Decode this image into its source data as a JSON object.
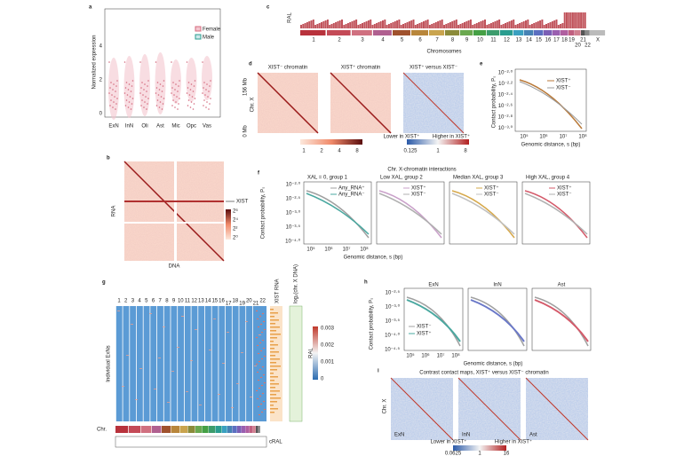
{
  "panels": {
    "a": {
      "letter": "a",
      "ylabel": "Normalized expression",
      "yticks": [
        "0",
        "2",
        "4"
      ],
      "categories": [
        "ExN",
        "InN",
        "Oli",
        "Ast",
        "Mic",
        "Opc",
        "Vas"
      ],
      "legend": [
        "Female",
        "Male"
      ]
    },
    "b": {
      "letter": "b",
      "ylabel": "RNA",
      "xlabel": "DNA",
      "annotation": "XIST",
      "colorbar": [
        "2⁶",
        "2⁴",
        "2²",
        "2⁰"
      ]
    },
    "c": {
      "letter": "c",
      "ylabel": "RAL",
      "xlabel": "Chromosomes",
      "chromosomes": [
        "1",
        "2",
        "3",
        "4",
        "5",
        "6",
        "7",
        "8",
        "9",
        "10",
        "11",
        "12",
        "13",
        "14",
        "15",
        "16",
        "17",
        "18",
        "19",
        "20",
        "21",
        "22",
        "X"
      ]
    },
    "d": {
      "letter": "d",
      "titles": [
        "XIST⁻ chromatin",
        "XIST⁺ chromatin",
        "XIST⁺ versus XIST⁻"
      ],
      "ylabel": "Chr. X",
      "top": "156 Mb",
      "bottom": "0 Mb",
      "colorbar1": [
        "1",
        "2",
        "4",
        "8"
      ],
      "colorbar2": [
        "0.125",
        "1",
        "8"
      ],
      "lower": "Lower in XIST⁺",
      "higher": "Higher in XIST⁺"
    },
    "e": {
      "letter": "e",
      "ylabel": "Contact probability, Pₛ",
      "xlabel": "Genomic distance, s (bp)",
      "yticks": [
        "10⁻²·⁰",
        "10⁻²·²",
        "10⁻²·⁴",
        "10⁻²·⁶",
        "10⁻²·⁸",
        "10⁻³·⁰"
      ],
      "xticks": [
        "10⁵",
        "10⁶",
        "10⁷",
        "10⁸"
      ],
      "legend": [
        "XIST⁺",
        "XIST⁻"
      ]
    },
    "f": {
      "letter": "f",
      "title": "Chr. X-chromatin interactions",
      "ylabel": "Contact probability, Pₛ",
      "xlabel": "Genomic distance, s (bp)",
      "yticks": [
        "10⁻²·⁰",
        "10⁻²·⁵",
        "10⁻³·⁰",
        "10⁻³·⁵",
        "10⁻⁴·⁰"
      ],
      "xticks": [
        "10⁵",
        "10⁶",
        "10⁷",
        "10⁸"
      ],
      "subplots": [
        {
          "title": "XAL = 0, group 1",
          "legend": [
            "Any_RNA⁺",
            "Any_RNA⁻"
          ]
        },
        {
          "title": "Low XAL, group 2",
          "legend": [
            "XIST⁺",
            "XIST⁻"
          ]
        },
        {
          "title": "Median XAL, group 3",
          "legend": [
            "XIST⁺",
            "XIST⁻"
          ]
        },
        {
          "title": "High XAL, group 4",
          "legend": [
            "XIST⁺",
            "XIST⁻"
          ]
        }
      ]
    },
    "g": {
      "letter": "g",
      "chromosomes": [
        "1",
        "2",
        "3",
        "4",
        "5",
        "6",
        "7",
        "8",
        "9",
        "10",
        "11",
        "12",
        "13",
        "14",
        "15",
        "16",
        "17",
        "18",
        "19",
        "20",
        "21",
        "22"
      ],
      "ylabel": "Individual ExNs",
      "col1": "XIST RNA",
      "col2": "log₂(chr. X DNA)",
      "colorbar": [
        "0.003",
        "0.002",
        "0.001",
        "0"
      ],
      "colorbar_label": "RAL",
      "chr": "Chr.",
      "cral": "cRAL"
    },
    "h": {
      "letter": "h",
      "titles": [
        "ExN",
        "InN",
        "Ast"
      ],
      "ylabel": "Contact probability, Pₛ",
      "xlabel": "Genomic distance, s (bp)",
      "yticks": [
        "10⁻²·⁵",
        "10⁻³·⁰",
        "10⁻³·⁵",
        "10⁻⁴·⁰",
        "10⁻⁴·⁵"
      ],
      "xticks": [
        "10⁵",
        "10⁶",
        "10⁷",
        "10⁸"
      ],
      "legend": [
        "XIST⁻",
        "XIST⁺"
      ]
    },
    "i": {
      "letter": "i",
      "title": "Contrast contact maps, XIST⁺ versus XIST⁻ chromatin",
      "ylabel": "Chr. X",
      "labels": [
        "ExN",
        "InN",
        "Ast"
      ],
      "lower": "Lower in XIST⁺",
      "higher": "Higher in XIST⁺",
      "colorbar": [
        "0.0625",
        "1",
        "16"
      ]
    }
  }
}
